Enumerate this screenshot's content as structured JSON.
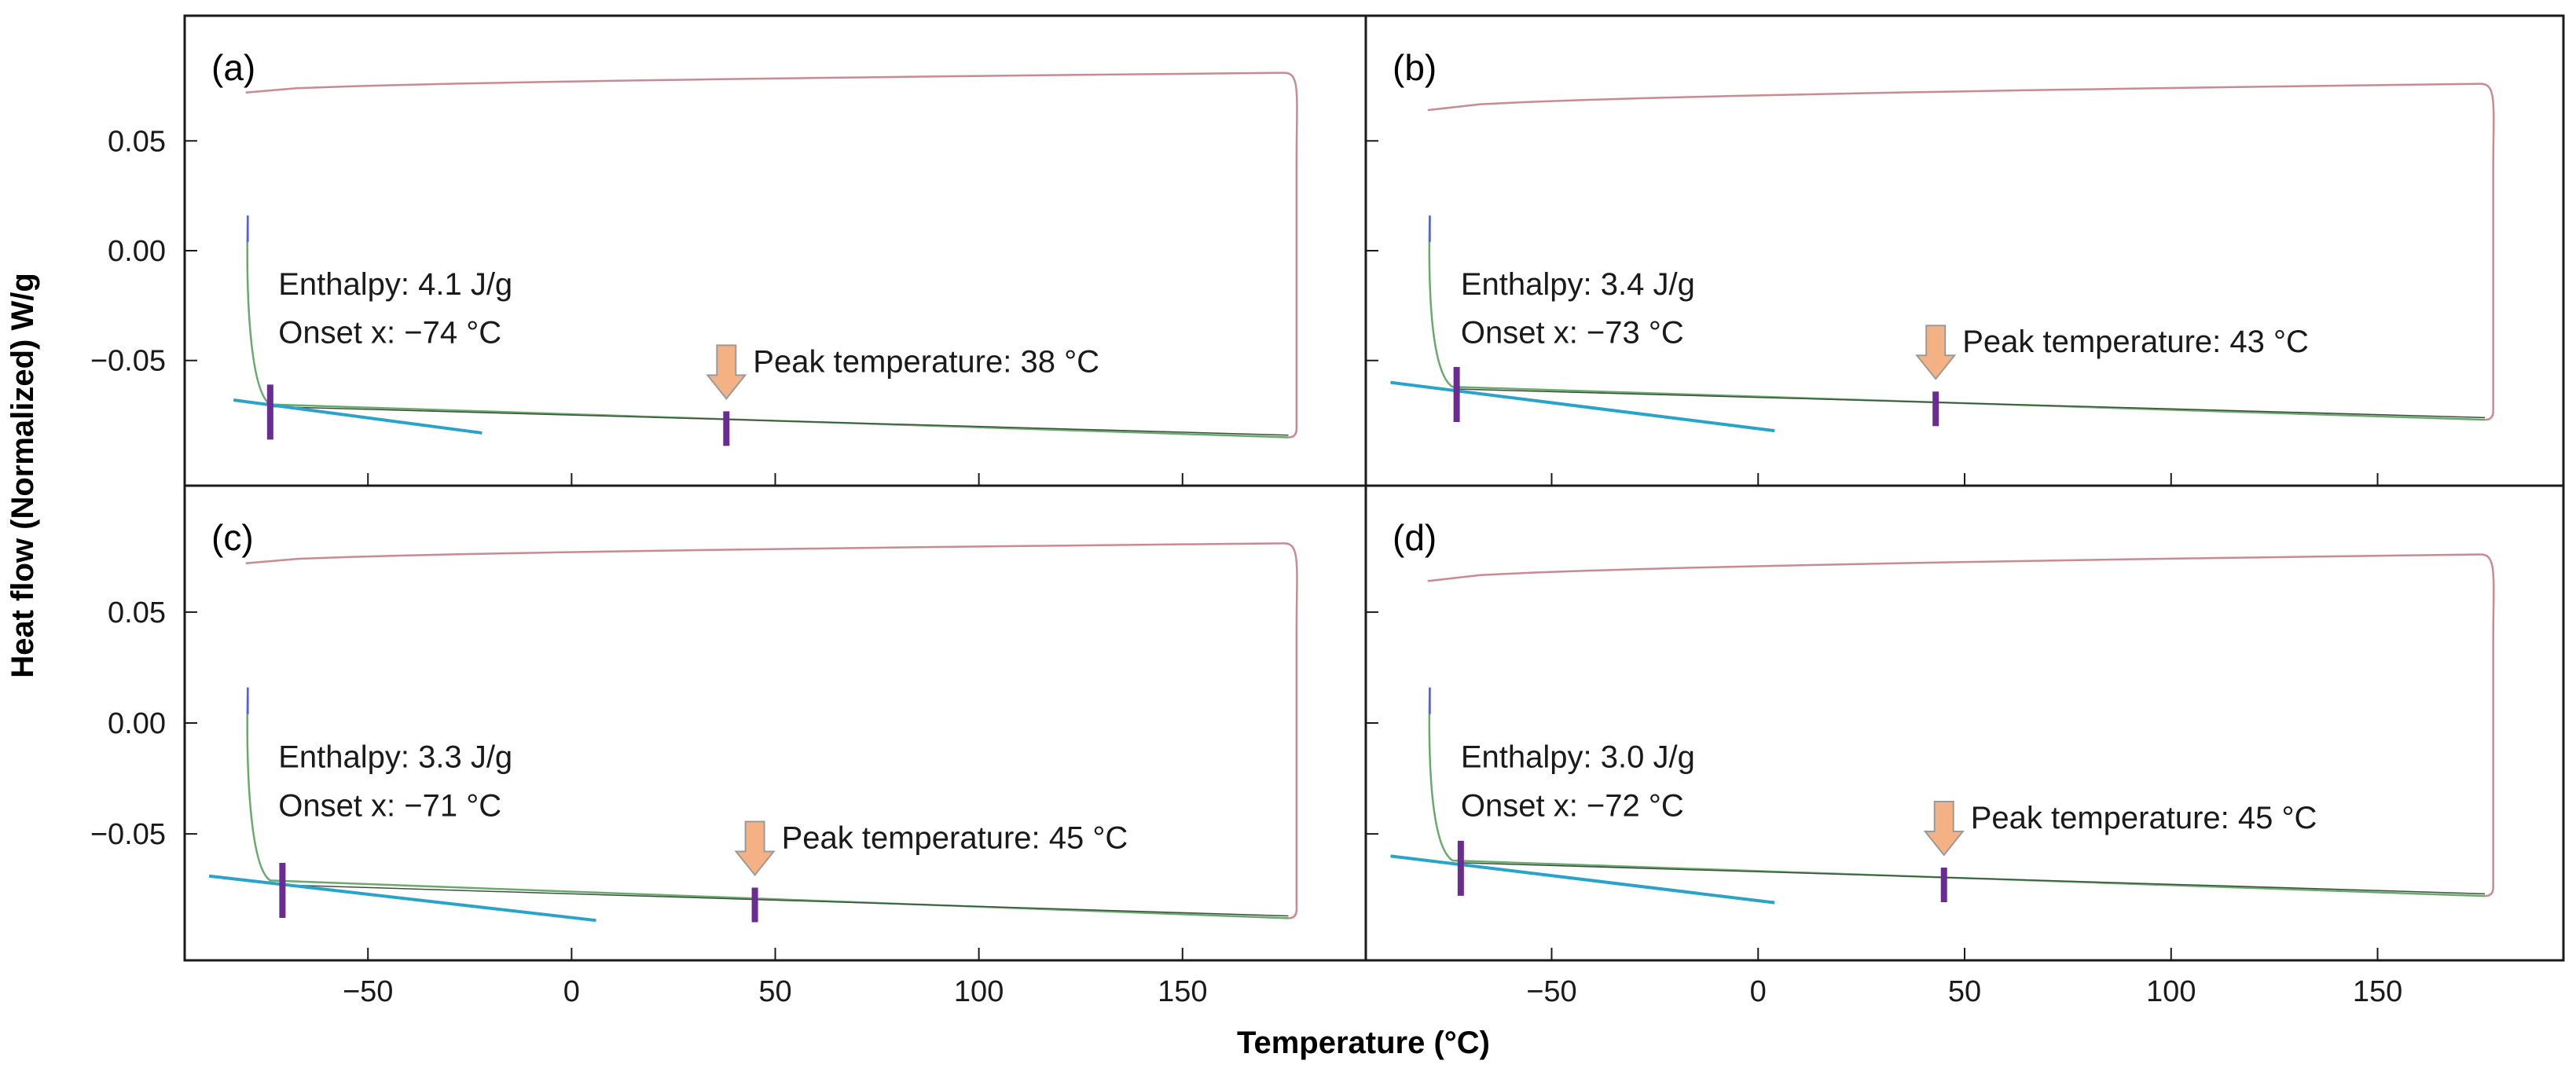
{
  "chart_data": {
    "type": "line",
    "figure": {
      "ylabel": "Heat flow (Normalized) W/g",
      "xlabel": "Temperature (°C)",
      "xlim": [
        -95,
        195
      ],
      "ylim": [
        -0.107,
        0.107
      ],
      "xticks": [
        -50,
        0,
        50,
        100,
        150
      ],
      "xtick_labels": [
        "−50",
        "0",
        "50",
        "100",
        "150"
      ],
      "yticks": [
        0.05,
        0.0,
        -0.05
      ],
      "ytick_labels": [
        "0.05",
        "0.00",
        "−0.05"
      ]
    },
    "colors": {
      "heating": "#c98a92",
      "cooling": "#6aa96e",
      "tangent": "#2aa3c9",
      "marker": "#6a2c91",
      "arrow_fill": "#f4b183",
      "arrow_stroke": "#9a9a9a",
      "frame": "#1a1a1a"
    },
    "panels": [
      {
        "label": "(a)",
        "enthalpy_text": "Enthalpy: 4.1 J/g",
        "onset_text": "Onset x: −74 °C",
        "peak_text": "Peak temperature: 38 °C",
        "onset": -74,
        "peak": 38,
        "heating_start": 0.072,
        "heating_end": 0.081,
        "cooling_start": -0.07,
        "cooling_end": -0.085,
        "onset_y": -0.071,
        "peak_y": -0.081,
        "tangent": [
          [
            -83,
            -0.068
          ],
          [
            -22,
            -0.083
          ]
        ]
      },
      {
        "label": "(b)",
        "enthalpy_text": "Enthalpy: 3.4 J/g",
        "onset_text": "Onset x: −73 °C",
        "peak_text": "Peak temperature: 43 °C",
        "onset": -73,
        "peak": 43,
        "heating_start": 0.064,
        "heating_end": 0.076,
        "cooling_start": -0.062,
        "cooling_end": -0.077,
        "onset_y": -0.063,
        "peak_y": -0.072,
        "tangent": [
          [
            -89,
            -0.06
          ],
          [
            4,
            -0.082
          ]
        ]
      },
      {
        "label": "(c)",
        "enthalpy_text": "Enthalpy: 3.3 J/g",
        "onset_text": "Onset x: −71 °C",
        "peak_text": "Peak temperature: 45 °C",
        "onset": -71,
        "peak": 45,
        "heating_start": 0.072,
        "heating_end": 0.081,
        "cooling_start": -0.071,
        "cooling_end": -0.088,
        "onset_y": -0.073,
        "peak_y": -0.082,
        "tangent": [
          [
            -89,
            -0.069
          ],
          [
            6,
            -0.089
          ]
        ]
      },
      {
        "label": "(d)",
        "enthalpy_text": "Enthalpy: 3.0 J/g",
        "onset_text": "Onset x: −72 °C",
        "peak_text": "Peak temperature: 45 °C",
        "onset": -72,
        "peak": 45,
        "heating_start": 0.064,
        "heating_end": 0.076,
        "cooling_start": -0.062,
        "cooling_end": -0.078,
        "onset_y": -0.063,
        "peak_y": -0.073,
        "tangent": [
          [
            -89,
            -0.06
          ],
          [
            4,
            -0.081
          ]
        ]
      }
    ]
  }
}
